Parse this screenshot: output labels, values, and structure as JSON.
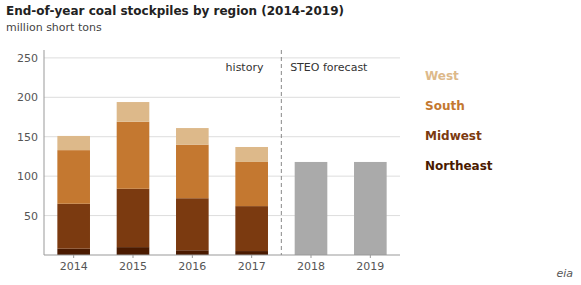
{
  "chart_data": {
    "type": "bar",
    "stacked": true,
    "title": "End-of-year coal stockpiles by region (2014-2019)",
    "subtitle": "million short tons",
    "categories": [
      "2014",
      "2015",
      "2016",
      "2017",
      "2018",
      "2019"
    ],
    "series": [
      {
        "name": "Northeast",
        "color": "#4a1a00",
        "values": [
          8,
          10,
          6,
          5,
          null,
          null
        ]
      },
      {
        "name": "Midwest",
        "color": "#7b3a10",
        "values": [
          57,
          74,
          66,
          57,
          null,
          null
        ]
      },
      {
        "name": "South",
        "color": "#c47830",
        "values": [
          68,
          85,
          68,
          56,
          null,
          null
        ]
      },
      {
        "name": "West",
        "color": "#ddb98a",
        "values": [
          18,
          25,
          21,
          19,
          null,
          null
        ]
      },
      {
        "color": "#aaaaaa",
        "values": [
          null,
          null,
          null,
          null,
          118,
          118
        ]
      }
    ],
    "annotations": [
      "history",
      "STEO forecast",
      "eia"
    ],
    "ylim": [
      0,
      260
    ],
    "yticks": [
      50,
      100,
      150,
      200,
      250
    ],
    "grid": true,
    "legend": "right"
  }
}
